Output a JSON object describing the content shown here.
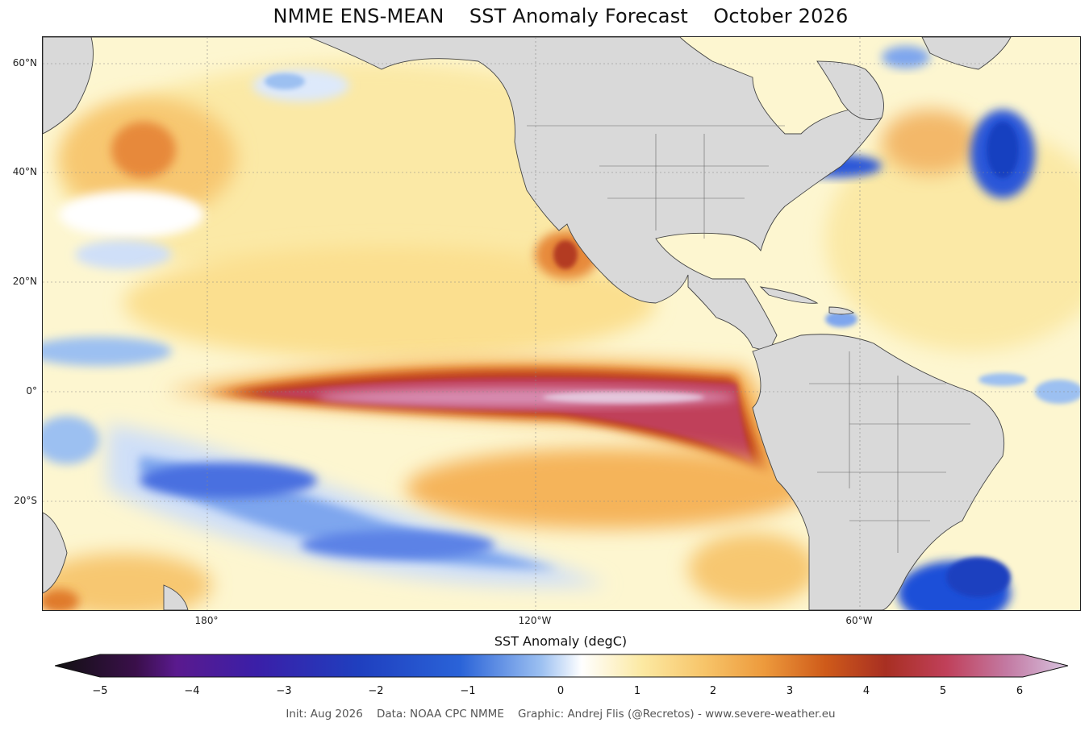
{
  "title": "NMME ENS-MEAN    SST Anomaly Forecast    October 2026",
  "map": {
    "lat_labels": [
      "60°N",
      "40°N",
      "20°N",
      "0°",
      "20°S"
    ],
    "lon_labels": [
      "180°",
      "120°W",
      "60°W"
    ]
  },
  "colorbar": {
    "title": "SST Anomaly (degC)",
    "ticks": [
      "−5",
      "−4",
      "−3",
      "−2",
      "−1",
      "0",
      "1",
      "2",
      "3",
      "4",
      "5",
      "6"
    ],
    "range": [
      -5,
      6
    ]
  },
  "credit": "Init: Aug 2026    Data: NOAA CPC NMME    Graphic: Andrej Flis (@Recretos) - www.severe-weather.eu",
  "colors": {
    "land": "#d9d9d9",
    "strong_positive": "#b8405e",
    "strong_negative": "#1f4fd8"
  }
}
